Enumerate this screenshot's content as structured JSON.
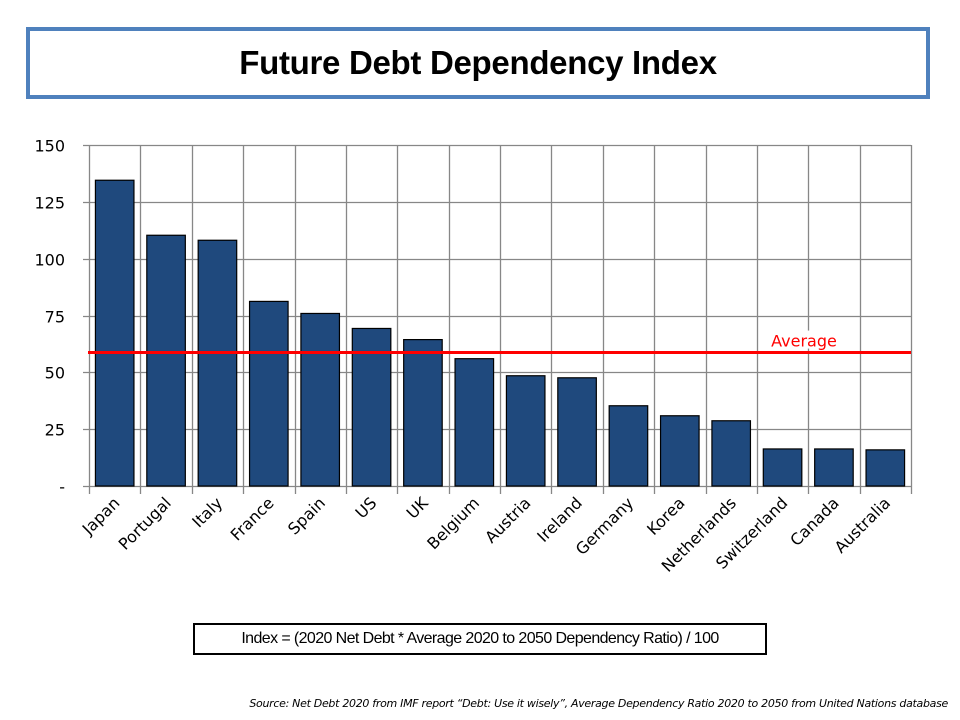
{
  "chart_data": {
    "type": "bar",
    "title": "Future Debt Dependency Index",
    "xlabel": "",
    "ylabel": "",
    "categories": [
      "Japan",
      "Portugal",
      "Italy",
      "France",
      "Spain",
      "US",
      "UK",
      "Belgium",
      "Austria",
      "Ireland",
      "Germany",
      "Korea",
      "Netherlands",
      "Switzerland",
      "Canada",
      "Australia"
    ],
    "values": [
      134.5,
      110.3,
      108.1,
      81.2,
      75.9,
      69.3,
      64.4,
      56.0,
      48.5,
      47.6,
      35.3,
      30.9,
      28.7,
      16.3,
      16.3,
      15.9
    ],
    "ylim": [
      0,
      150
    ],
    "yticks": [
      0,
      25,
      50,
      75,
      100,
      125,
      150
    ],
    "ytick_labels": [
      "-",
      "25",
      "50",
      "75",
      "100",
      "125",
      "150"
    ],
    "grid": true,
    "bar_color": "#1f497d",
    "reference_line": {
      "label": "Average",
      "value": 58.7,
      "color": "#ff0000"
    },
    "legend": "none"
  },
  "formula": "Index = (2020 Net Debt * Average 2020 to 2050 Dependency Ratio) / 100",
  "source": "Source:  Net Debt 2020 from IMF report “Debt: Use it wisely”,  Average Dependency Ratio 2020 to 2050  from United Nations database"
}
